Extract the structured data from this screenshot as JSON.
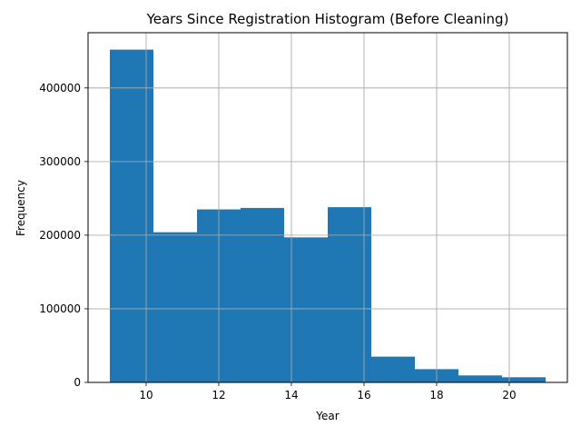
{
  "chart_data": {
    "type": "bar",
    "title": "Years Since Registration Histogram (Before Cleaning)",
    "xlabel": "Year",
    "ylabel": "Frequency",
    "xlim": [
      8.4,
      21.6
    ],
    "ylim": [
      0,
      475000
    ],
    "grid": true,
    "bar_color": "#1f77b4",
    "bins": [
      {
        "x0": 9.0,
        "x1": 10.2,
        "value": 452000
      },
      {
        "x0": 10.2,
        "x1": 11.4,
        "value": 204000
      },
      {
        "x0": 11.4,
        "x1": 12.6,
        "value": 235000
      },
      {
        "x0": 12.6,
        "x1": 13.8,
        "value": 237000
      },
      {
        "x0": 13.8,
        "x1": 15.0,
        "value": 197000
      },
      {
        "x0": 15.0,
        "x1": 16.2,
        "value": 238000
      },
      {
        "x0": 16.2,
        "x1": 17.4,
        "value": 35000
      },
      {
        "x0": 17.4,
        "x1": 18.6,
        "value": 18000
      },
      {
        "x0": 18.6,
        "x1": 19.8,
        "value": 9500
      },
      {
        "x0": 19.8,
        "x1": 21.0,
        "value": 7000
      }
    ],
    "x_ticks": [
      {
        "value": 10,
        "label": "10"
      },
      {
        "value": 12,
        "label": "12"
      },
      {
        "value": 14,
        "label": "14"
      },
      {
        "value": 16,
        "label": "16"
      },
      {
        "value": 18,
        "label": "18"
      },
      {
        "value": 20,
        "label": "20"
      }
    ],
    "y_ticks": [
      {
        "value": 0,
        "label": "0"
      },
      {
        "value": 100000,
        "label": "100000"
      },
      {
        "value": 200000,
        "label": "200000"
      },
      {
        "value": 300000,
        "label": "300000"
      },
      {
        "value": 400000,
        "label": "400000"
      }
    ]
  }
}
